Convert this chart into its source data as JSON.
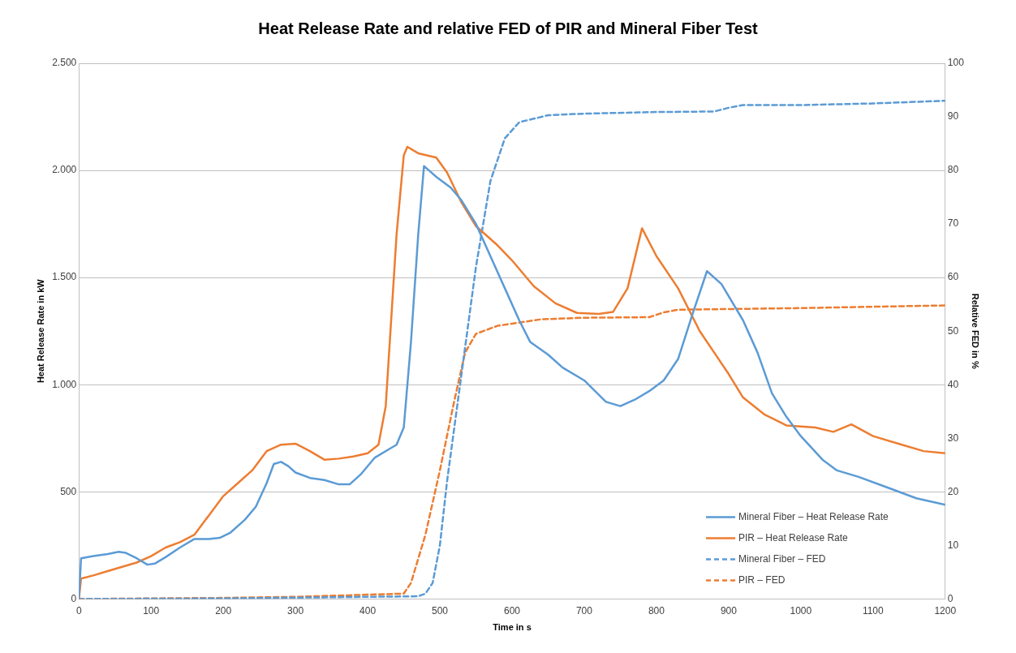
{
  "chart_data": {
    "type": "line",
    "title": "Heat Release Rate and relative FED of PIR and Mineral Fiber Test",
    "xlabel": "Time in s",
    "ylabel": "Heat Release Rate in kW",
    "y2label": "Relative FED in %",
    "xlim": [
      0,
      1200
    ],
    "xticks": [
      0,
      100,
      200,
      300,
      400,
      500,
      600,
      700,
      800,
      900,
      1000,
      1100,
      1200
    ],
    "ylim": [
      0,
      2500
    ],
    "yticks": [
      0,
      500,
      {
        "value": 1000,
        "label": "1.000"
      },
      {
        "value": 1500,
        "label": "1.500"
      },
      {
        "value": 2000,
        "label": "2.000"
      },
      {
        "value": 2500,
        "label": "2.500"
      }
    ],
    "y2lim": [
      0,
      100
    ],
    "y2ticks": [
      0,
      10,
      20,
      30,
      40,
      50,
      60,
      70,
      80,
      90,
      100
    ],
    "grid": "y",
    "legend": "bottom right",
    "marker": "none",
    "series": [
      {
        "name": "Mineral Fiber – Heat Release Rate",
        "color": "#5b9bd5",
        "line_style": "solid",
        "x": [
          0,
          3,
          20,
          40,
          55,
          65,
          80,
          95,
          105,
          120,
          140,
          160,
          180,
          195,
          210,
          230,
          245,
          260,
          270,
          280,
          290,
          300,
          320,
          340,
          360,
          375,
          390,
          410,
          430,
          440,
          450,
          460,
          470,
          478,
          485,
          495,
          515,
          530,
          550,
          570,
          590,
          610,
          625,
          650,
          670,
          700,
          730,
          750,
          770,
          790,
          810,
          830,
          850,
          870,
          890,
          920,
          940,
          960,
          980,
          1000,
          1030,
          1050,
          1080,
          1120,
          1160,
          1200
        ],
        "values": [
          0,
          190,
          200,
          210,
          220,
          215,
          190,
          160,
          165,
          195,
          240,
          280,
          280,
          285,
          310,
          370,
          430,
          540,
          630,
          640,
          620,
          590,
          565,
          555,
          535,
          535,
          580,
          660,
          700,
          720,
          800,
          1200,
          1700,
          2020,
          2000,
          1970,
          1920,
          1860,
          1750,
          1600,
          1450,
          1300,
          1200,
          1140,
          1080,
          1020,
          920,
          900,
          930,
          970,
          1020,
          1120,
          1330,
          1530,
          1470,
          1300,
          1150,
          960,
          850,
          760,
          650,
          600,
          570,
          520,
          470,
          440
        ]
      },
      {
        "name": "PIR – Heat Release Rate",
        "color": "#ed7d31",
        "line_style": "solid",
        "x": [
          0,
          3,
          20,
          40,
          60,
          80,
          100,
          120,
          140,
          160,
          180,
          200,
          220,
          240,
          260,
          280,
          300,
          320,
          340,
          360,
          380,
          400,
          415,
          425,
          440,
          450,
          455,
          470,
          495,
          510,
          530,
          550,
          580,
          600,
          630,
          660,
          690,
          720,
          740,
          760,
          780,
          800,
          830,
          860,
          880,
          900,
          920,
          950,
          980,
          1020,
          1045,
          1070,
          1100,
          1140,
          1170,
          1200
        ],
        "values": [
          0,
          95,
          110,
          130,
          150,
          170,
          200,
          240,
          265,
          300,
          390,
          480,
          540,
          600,
          690,
          720,
          725,
          690,
          650,
          655,
          665,
          680,
          720,
          900,
          1700,
          2070,
          2110,
          2080,
          2060,
          1990,
          1850,
          1740,
          1650,
          1580,
          1460,
          1380,
          1335,
          1330,
          1340,
          1450,
          1730,
          1600,
          1450,
          1250,
          1150,
          1050,
          940,
          860,
          810,
          800,
          780,
          815,
          760,
          720,
          690,
          680
        ]
      },
      {
        "name": "Mineral Fiber – FED",
        "color": "#5b9bd5",
        "line_style": "dashed",
        "axis": "y2",
        "x": [
          0,
          200,
          400,
          470,
          480,
          490,
          500,
          510,
          530,
          550,
          570,
          590,
          610,
          650,
          700,
          800,
          880,
          900,
          920,
          1000,
          1100,
          1200
        ],
        "values": [
          0,
          0.1,
          0.4,
          0.5,
          1,
          3,
          10,
          22,
          42,
          62,
          78,
          86,
          89,
          90.3,
          90.6,
          90.9,
          91,
          91.7,
          92.2,
          92.2,
          92.5,
          93
        ]
      },
      {
        "name": "PIR – FED",
        "color": "#ed7d31",
        "line_style": "dashed",
        "axis": "y2",
        "x": [
          0,
          200,
          300,
          400,
          450,
          460,
          480,
          500,
          520,
          535,
          550,
          580,
          640,
          700,
          790,
          810,
          830,
          1000,
          1200
        ],
        "values": [
          0,
          0.2,
          0.4,
          0.8,
          1,
          3,
          12,
          24,
          37,
          46,
          49.5,
          51,
          52.2,
          52.5,
          52.6,
          53.5,
          54,
          54.3,
          54.8
        ]
      }
    ]
  }
}
